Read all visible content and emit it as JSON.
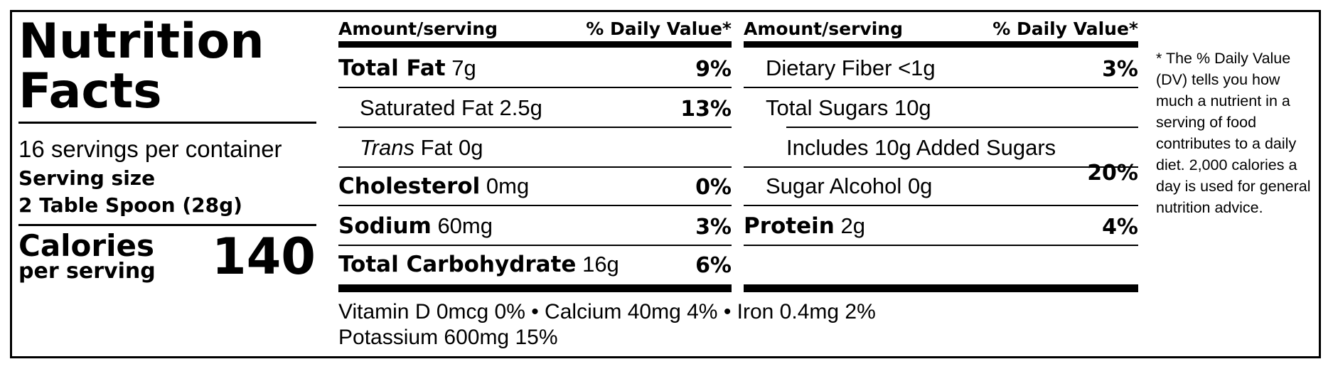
{
  "title": "Nutrition Facts",
  "servings_per_container": "16 servings per container",
  "serving_size_label": "Serving size",
  "serving_size_value": "2 Table Spoon (28g)",
  "calories_label": "Calories",
  "calories_sublabel": "per serving",
  "calories_value": "140",
  "header": {
    "amount": "Amount/serving",
    "dv": "% Daily Value*"
  },
  "left_rows": [
    {
      "name": "Total Fat",
      "amount": "7g",
      "dv": "9%"
    },
    {
      "name": "Saturated Fat",
      "amount": "2.5g",
      "dv": "13%"
    },
    {
      "name_italic": "Trans",
      "name": "Fat",
      "amount": "0g",
      "dv": ""
    },
    {
      "name": "Cholesterol",
      "amount": "0mg",
      "dv": "0%"
    },
    {
      "name": "Sodium",
      "amount": "60mg",
      "dv": "3%"
    },
    {
      "name": "Total Carbohydrate",
      "amount": "16g",
      "dv": "6%"
    }
  ],
  "right_rows": [
    {
      "name": "Dietary Fiber",
      "amount": "<1g",
      "dv": "3%"
    },
    {
      "name": "Total Sugars",
      "amount": "10g",
      "dv": ""
    },
    {
      "name": "Includes 10g Added Sugars",
      "amount": "",
      "dv": "20%"
    },
    {
      "name": "Sugar Alcohol",
      "amount": "0g",
      "dv": ""
    },
    {
      "name": "Protein",
      "amount": "2g",
      "dv": "4%"
    }
  ],
  "vitamins_line1": "Vitamin D 0mcg 0% • Calcium 40mg 4% • Iron 0.4mg 2%",
  "vitamins_line2": "Potassium 600mg 15%",
  "footnote": "* The % Daily Value (DV) tells you how much a nutrient in a serving of food contributes to a daily diet. 2,000 calories a day is used for general nutrition advice."
}
